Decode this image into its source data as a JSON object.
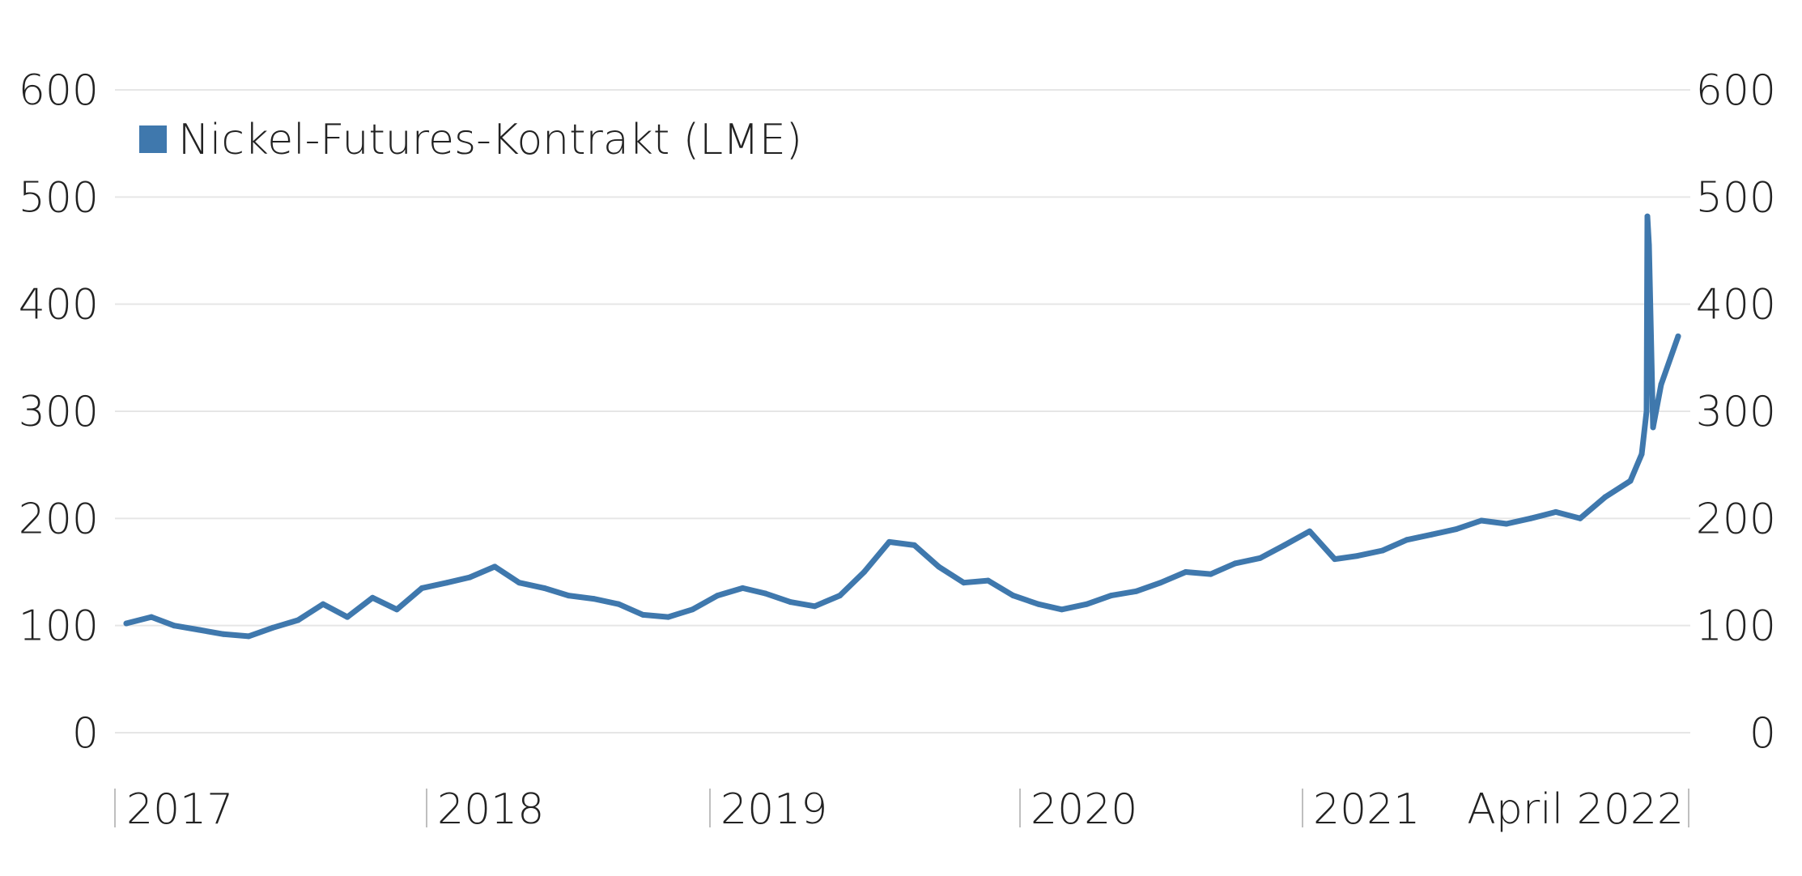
{
  "chart_data": {
    "type": "line",
    "title": "",
    "xlabel": "",
    "ylabel": "",
    "ylim": [
      0,
      600
    ],
    "yticks": [
      "0",
      "100",
      "200",
      "300",
      "400",
      "500",
      "600"
    ],
    "y_axis_sides": "left-and-right",
    "grid": true,
    "legend_placement": "top-left",
    "x_tick_labels": [
      "2017",
      "2018",
      "2019",
      "2020",
      "2021",
      "April 2022"
    ],
    "colors": {
      "series": "#3f78ad",
      "grid": "#e6e6e6",
      "text": "#222222"
    },
    "series": [
      {
        "name": "Nickel-Futures-Kontrakt (LME)",
        "x": [
          "2017-01",
          "2017-02",
          "2017-03",
          "2017-04",
          "2017-05",
          "2017-06",
          "2017-07",
          "2017-08",
          "2017-09",
          "2017-10",
          "2017-11",
          "2017-12",
          "2018-01",
          "2018-02",
          "2018-03",
          "2018-04",
          "2018-05",
          "2018-06",
          "2018-07",
          "2018-08",
          "2018-09",
          "2018-10",
          "2018-11",
          "2018-12",
          "2019-01",
          "2019-02",
          "2019-03",
          "2019-04",
          "2019-05",
          "2019-06",
          "2019-07",
          "2019-08",
          "2019-09",
          "2019-10",
          "2019-11",
          "2019-12",
          "2020-01",
          "2020-02",
          "2020-03",
          "2020-04",
          "2020-05",
          "2020-06",
          "2020-07",
          "2020-08",
          "2020-09",
          "2020-10",
          "2020-11",
          "2020-12",
          "2021-01",
          "2021-02",
          "2021-03",
          "2021-04",
          "2021-05",
          "2021-06",
          "2021-07",
          "2021-08",
          "2021-09",
          "2021-10",
          "2021-11",
          "2021-12",
          "2022-01",
          "2022-02",
          "2022-03-01",
          "2022-03-07",
          "2022-03-08",
          "2022-03-10",
          "2022-03-15",
          "2022-03-25",
          "2022-04"
        ],
        "values": [
          102,
          108,
          100,
          96,
          92,
          90,
          98,
          105,
          120,
          108,
          126,
          115,
          135,
          140,
          145,
          155,
          140,
          135,
          128,
          125,
          120,
          110,
          108,
          115,
          128,
          135,
          130,
          122,
          118,
          128,
          150,
          178,
          175,
          155,
          140,
          142,
          128,
          120,
          115,
          120,
          128,
          132,
          140,
          150,
          148,
          158,
          163,
          175,
          188,
          162,
          165,
          170,
          180,
          185,
          190,
          198,
          195,
          200,
          206,
          200,
          220,
          235,
          260,
          300,
          482,
          455,
          285,
          325,
          370
        ]
      }
    ]
  }
}
